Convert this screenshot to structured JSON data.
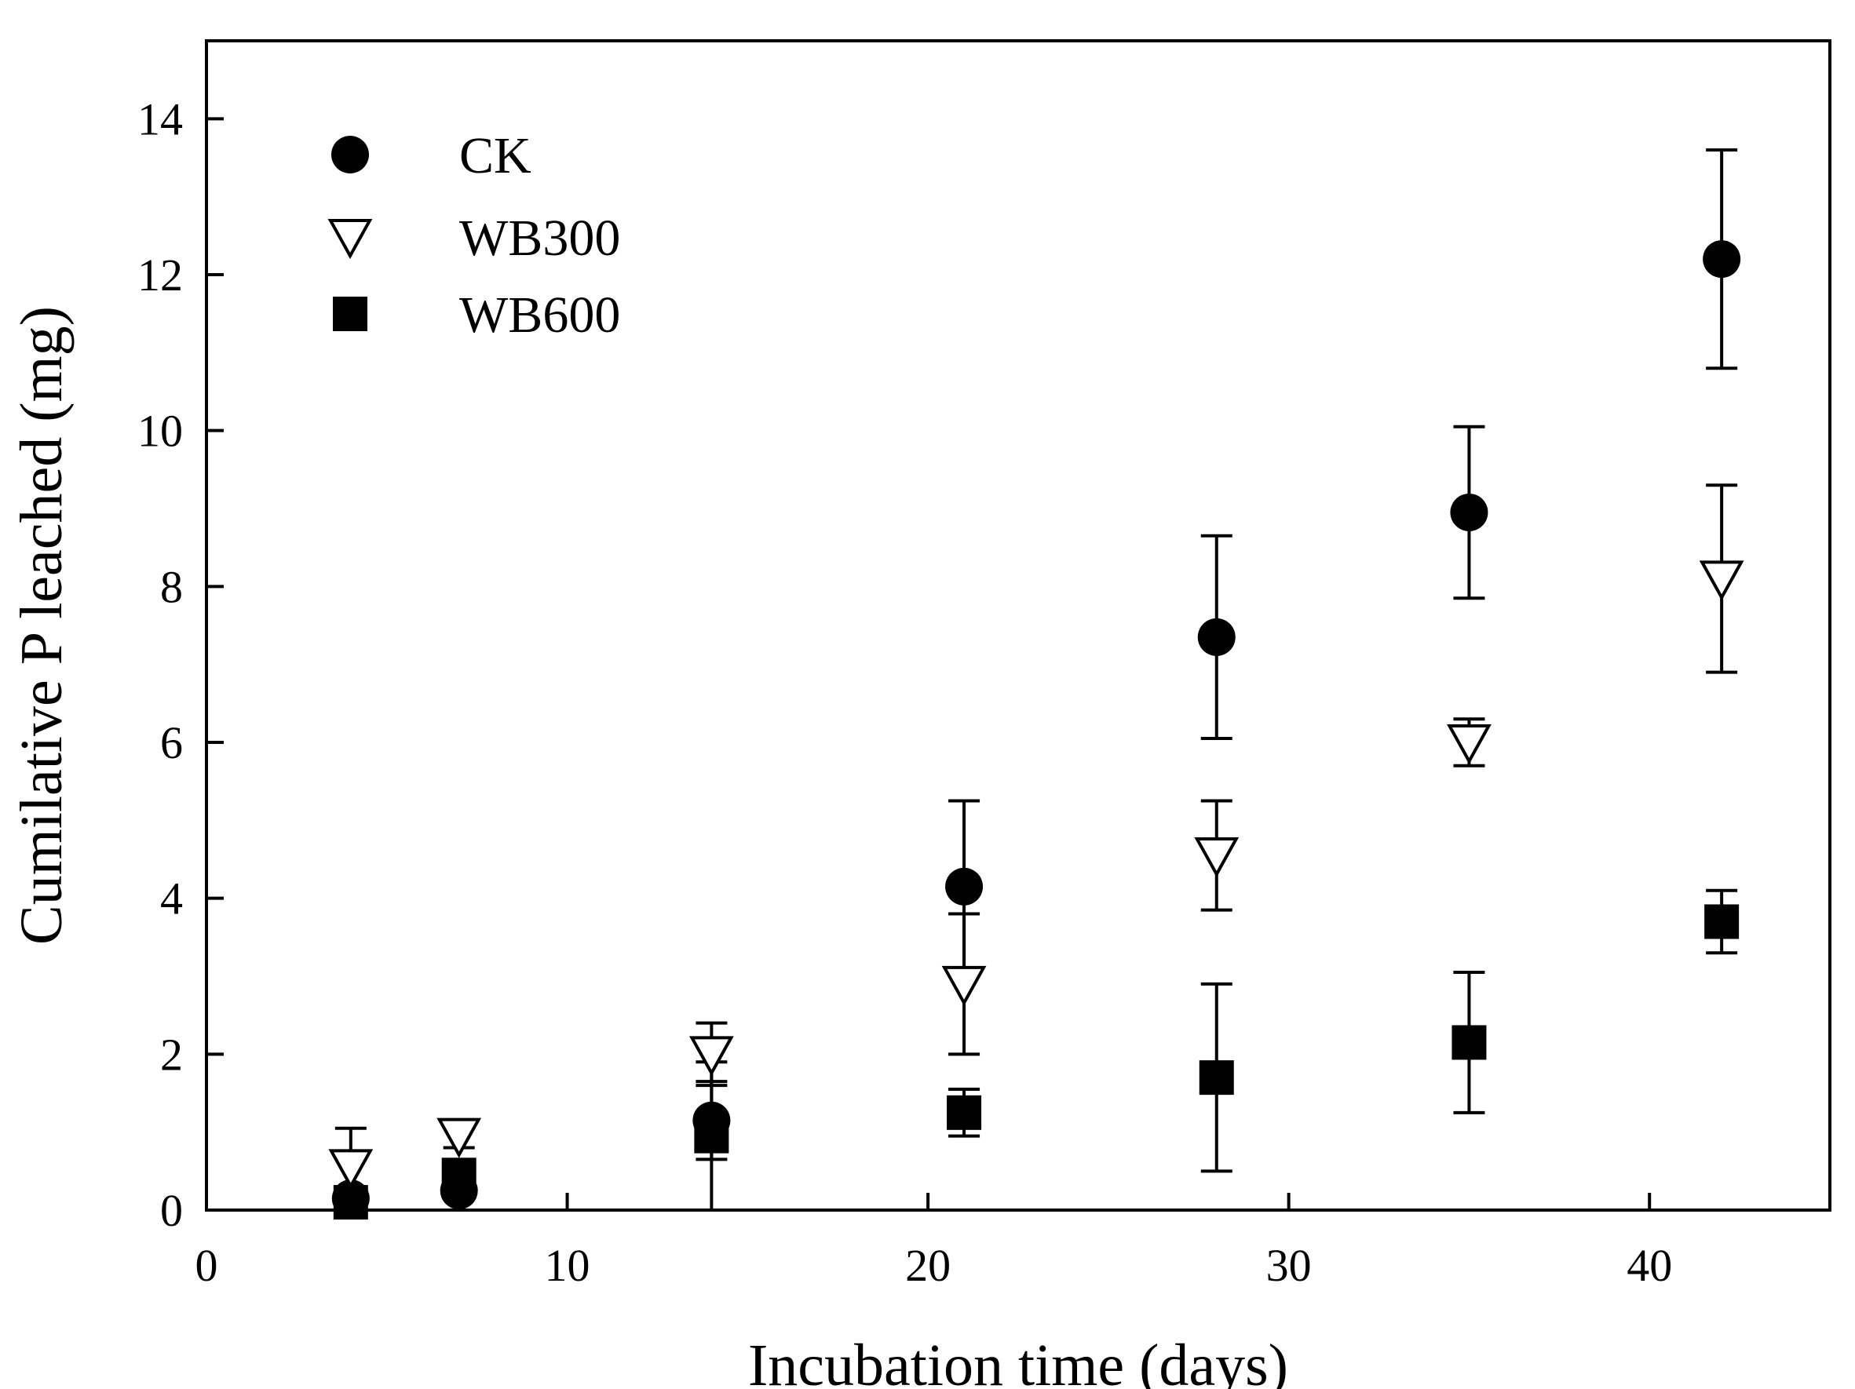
{
  "chart_data": {
    "type": "scatter",
    "title": "",
    "xlabel": "Incubation time (days)",
    "ylabel": "Cumilative P leached (mg)",
    "xlim": [
      0,
      45
    ],
    "ylim": [
      0,
      15
    ],
    "xticks": [
      0,
      10,
      20,
      30,
      40
    ],
    "yticks": [
      0,
      2,
      4,
      6,
      8,
      10,
      12,
      14
    ],
    "grid": false,
    "legend_position": "top-left",
    "series": [
      {
        "name": "CK",
        "marker": "filled-circle",
        "color": "#000000",
        "x": [
          4,
          7,
          14,
          21,
          28,
          35,
          42
        ],
        "y": [
          0.15,
          0.25,
          1.15,
          4.15,
          7.35,
          8.95,
          12.2
        ],
        "err": [
          0.1,
          0.1,
          0.5,
          1.1,
          1.3,
          1.1,
          1.4
        ]
      },
      {
        "name": "WB300",
        "marker": "open-triangle-down",
        "color": "#000000",
        "x": [
          4,
          7,
          14,
          21,
          28,
          35,
          42
        ],
        "y": [
          0.55,
          0.95,
          2.0,
          2.9,
          4.55,
          6.0,
          8.1
        ],
        "err": [
          0.5,
          0.15,
          0.4,
          0.9,
          0.7,
          0.3,
          1.2
        ]
      },
      {
        "name": "WB600",
        "marker": "filled-square",
        "color": "#000000",
        "x": [
          4,
          7,
          14,
          21,
          28,
          35,
          42
        ],
        "y": [
          0.1,
          0.45,
          0.95,
          1.25,
          1.7,
          2.15,
          3.7
        ],
        "err": [
          0.05,
          0.1,
          0.95,
          0.3,
          1.2,
          0.9,
          0.4
        ]
      }
    ]
  }
}
